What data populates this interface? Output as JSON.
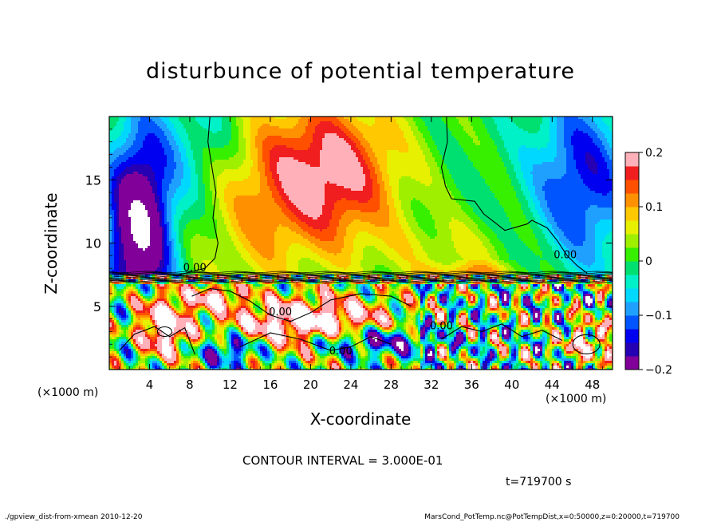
{
  "chart_data": {
    "type": "heatmap",
    "title": "disturbunce of potential temperature",
    "xlabel": "X-coordinate",
    "ylabel": "Z-coordinate",
    "x_unit": "(×1000 m)",
    "y_unit": "(×1000 m)",
    "xlim": [
      0,
      50
    ],
    "ylim": [
      0,
      20
    ],
    "xticks": [
      4,
      8,
      12,
      16,
      20,
      24,
      28,
      32,
      36,
      40,
      44,
      48
    ],
    "yticks": [
      5,
      10,
      15
    ],
    "colorbar": {
      "range": [
        -0.2,
        0.2
      ],
      "ticks": [
        {
          "value": 0.2,
          "label": "0.2"
        },
        {
          "value": 0.1,
          "label": "0.1"
        },
        {
          "value": 0,
          "label": "0"
        },
        {
          "value": -0.1,
          "label": "−0.1"
        },
        {
          "value": -0.2,
          "label": "−0.2"
        }
      ]
    },
    "contour_labels": [
      {
        "text": "0.00",
        "x": 8.5,
        "z": 7.8
      },
      {
        "text": "0.00",
        "x": 17.0,
        "z": 4.3
      },
      {
        "text": "0.00",
        "x": 23.0,
        "z": 1.2
      },
      {
        "text": "0.00",
        "x": 33.0,
        "z": 3.2
      },
      {
        "text": "0.00",
        "x": 45.3,
        "z": 8.8
      }
    ]
  },
  "annotations": {
    "contour_interval": "CONTOUR INTERVAL = 3.000E-01",
    "time": "t=719700 s",
    "footer_left": "./gpview_dist-from-xmean   2010-12-20",
    "footer_right": "MarsCond_PotTemp.nc@PotTempDist,x=0:50000,z=0:20000,t=719700"
  }
}
